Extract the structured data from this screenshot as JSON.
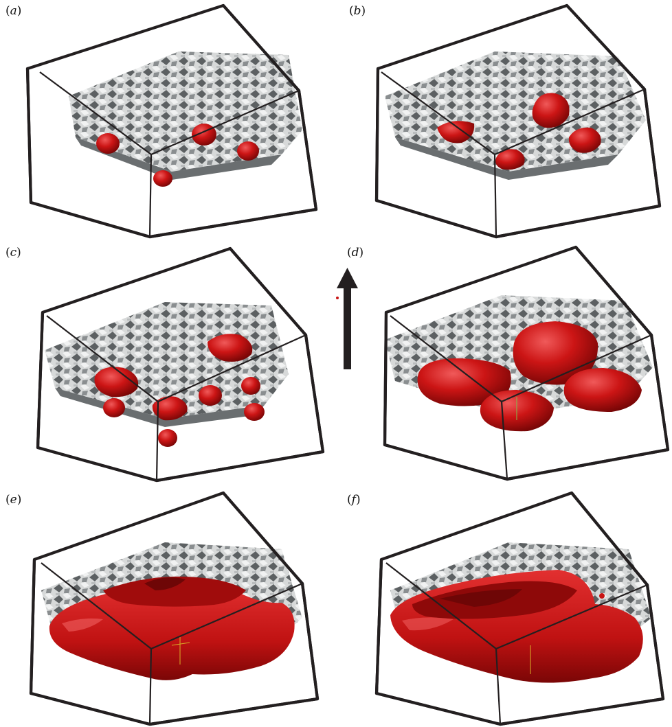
{
  "figure": {
    "panels": [
      {
        "id": "a",
        "label": "a",
        "blob_stage": "spheres",
        "blob_count": 4
      },
      {
        "id": "b",
        "label": "b",
        "blob_stage": "caps",
        "blob_count": 4
      },
      {
        "id": "c",
        "label": "c",
        "blob_stage": "mixed",
        "blob_count": 9
      },
      {
        "id": "d",
        "label": "d",
        "blob_stage": "large-caps",
        "blob_count": 4
      },
      {
        "id": "e",
        "label": "e",
        "blob_stage": "merged-sheet",
        "blob_count": 1
      },
      {
        "id": "f",
        "label": "f",
        "blob_stage": "continuous-sheet",
        "blob_count": 1
      }
    ],
    "direction_arrow": {
      "meaning": "upward",
      "icon": "up-arrow-icon"
    },
    "colors": {
      "frame": "#231f20",
      "solid": "#d2d4d4",
      "solid_shadow": "#5d6163",
      "fluid": "#c81414",
      "fluid_shadow": "#7a0606"
    }
  }
}
